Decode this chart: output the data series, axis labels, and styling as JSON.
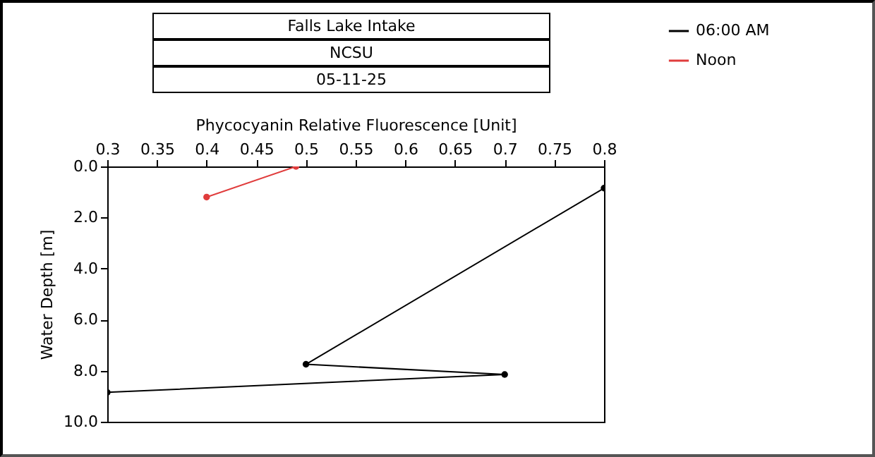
{
  "chart_data": {
    "type": "line",
    "title": "Falls Lake Intake",
    "subtitle": "NCSU",
    "annotations": [
      "05-11-25"
    ],
    "xlabel": "Phycocyanin Relative Fluorescence [Unit]",
    "ylabel": "Water Depth [m]",
    "xlim": [
      0.3,
      0.8
    ],
    "xticks": [
      0.3,
      0.35,
      0.4,
      0.45,
      0.5,
      0.55,
      0.6,
      0.65,
      0.7,
      0.75,
      0.8
    ],
    "ylim": [
      10,
      0
    ],
    "yticks": [
      {
        "value": 0,
        "label": "0.0"
      },
      {
        "value": 2,
        "label": "2.0"
      },
      {
        "value": 4,
        "label": "4.0"
      },
      {
        "value": 6,
        "label": "6.0"
      },
      {
        "value": 8,
        "label": "8.0"
      },
      {
        "value": 10,
        "label": "10.0"
      }
    ],
    "series": [
      {
        "name": "06:00 AM",
        "color": "#000000",
        "x": [
          0.8,
          0.5,
          0.7,
          0.3
        ],
        "values": [
          0.85,
          7.75,
          8.15,
          8.85
        ]
      },
      {
        "name": "Noon",
        "color": "#e03c3c",
        "x": [
          0.49,
          0.4
        ],
        "values": [
          0.0,
          1.2
        ]
      }
    ],
    "marker": "circle",
    "line_style": "solid",
    "grid": false,
    "legend": "top right"
  }
}
